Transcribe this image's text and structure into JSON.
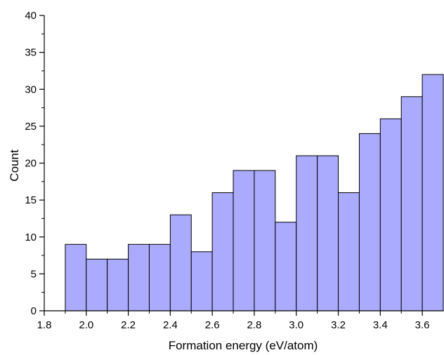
{
  "chart_data": {
    "type": "bar",
    "xlabel": "Formation energy (eV/atom)",
    "ylabel": "Count",
    "xlim": [
      1.8,
      3.7
    ],
    "ylim": [
      0,
      40
    ],
    "bin_width": 0.1,
    "bins": [
      {
        "start": 1.9,
        "end": 2.0,
        "count": 9
      },
      {
        "start": 2.0,
        "end": 2.1,
        "count": 7
      },
      {
        "start": 2.1,
        "end": 2.2,
        "count": 7
      },
      {
        "start": 2.2,
        "end": 2.3,
        "count": 9
      },
      {
        "start": 2.3,
        "end": 2.4,
        "count": 9
      },
      {
        "start": 2.4,
        "end": 2.5,
        "count": 13
      },
      {
        "start": 2.5,
        "end": 2.6,
        "count": 8
      },
      {
        "start": 2.6,
        "end": 2.7,
        "count": 16
      },
      {
        "start": 2.7,
        "end": 2.8,
        "count": 19
      },
      {
        "start": 2.8,
        "end": 2.9,
        "count": 19
      },
      {
        "start": 2.9,
        "end": 3.0,
        "count": 12
      },
      {
        "start": 3.0,
        "end": 3.1,
        "count": 21
      },
      {
        "start": 3.1,
        "end": 3.2,
        "count": 21
      },
      {
        "start": 3.2,
        "end": 3.3,
        "count": 16
      },
      {
        "start": 3.3,
        "end": 3.4,
        "count": 24
      },
      {
        "start": 3.4,
        "end": 3.5,
        "count": 26
      },
      {
        "start": 3.5,
        "end": 3.6,
        "count": 29
      },
      {
        "start": 3.6,
        "end": 3.7,
        "count": 32
      }
    ],
    "x_ticks": [
      "1.8",
      "2.0",
      "2.2",
      "2.4",
      "2.6",
      "2.8",
      "3.0",
      "3.2",
      "3.4",
      "3.6"
    ],
    "y_ticks": [
      "0",
      "5",
      "10",
      "15",
      "20",
      "25",
      "30",
      "35",
      "40"
    ],
    "bar_color": "#aaaaff",
    "bar_edge_color": "#000000",
    "grid": false,
    "legend": "none"
  }
}
